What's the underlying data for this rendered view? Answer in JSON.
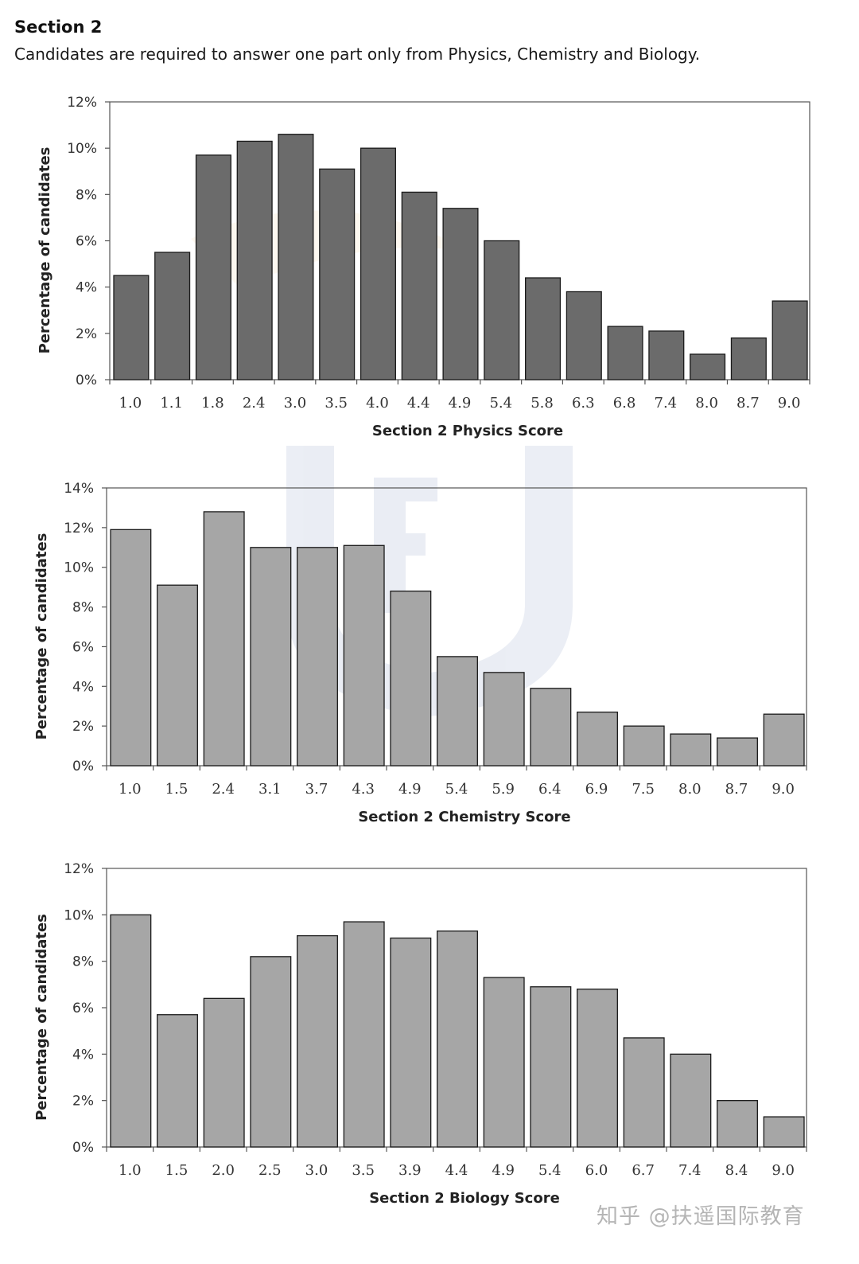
{
  "header": {
    "title": "Section 2",
    "subtitle": "Candidates are required to answer one part only from Physics, Chemistry and Biology."
  },
  "watermark": {
    "text": "知乎 @扶遥国际教育"
  },
  "colors": {
    "physics_bar": "#6b6b6b",
    "bar_light": "#a6a6a6",
    "bar_stroke": "#1a1a1a",
    "axis": "#555555"
  },
  "chart_data": [
    {
      "type": "bar",
      "title": "",
      "xlabel": "Section 2 Physics Score",
      "ylabel": "Percentage of candidates",
      "ylim": [
        0,
        12
      ],
      "yticks": [
        "0%",
        "2%",
        "4%",
        "6%",
        "8%",
        "10%",
        "12%"
      ],
      "categories": [
        "1.0",
        "1.1",
        "1.8",
        "2.4",
        "3.0",
        "3.5",
        "4.0",
        "4.4",
        "4.9",
        "5.4",
        "5.8",
        "6.3",
        "6.8",
        "7.4",
        "8.0",
        "8.7",
        "9.0"
      ],
      "values": [
        4.5,
        5.5,
        9.7,
        10.3,
        10.6,
        9.1,
        10.0,
        8.1,
        7.4,
        6.0,
        4.4,
        3.8,
        2.3,
        2.1,
        1.1,
        1.8,
        3.4
      ]
    },
    {
      "type": "bar",
      "title": "",
      "xlabel": "Section 2 Chemistry Score",
      "ylabel": "Percentage of candidates",
      "ylim": [
        0,
        14
      ],
      "yticks": [
        "0%",
        "2%",
        "4%",
        "6%",
        "8%",
        "10%",
        "12%",
        "14%"
      ],
      "categories": [
        "1.0",
        "1.5",
        "2.4",
        "3.1",
        "3.7",
        "4.3",
        "4.9",
        "5.4",
        "5.9",
        "6.4",
        "6.9",
        "7.5",
        "8.0",
        "8.7",
        "9.0"
      ],
      "values": [
        11.9,
        9.1,
        12.8,
        11.0,
        11.0,
        11.1,
        8.8,
        5.5,
        4.7,
        3.9,
        2.7,
        2.0,
        1.6,
        1.4,
        2.6
      ]
    },
    {
      "type": "bar",
      "title": "",
      "xlabel": "Section 2 Biology Score",
      "ylabel": "Percentage of candidates",
      "ylim": [
        0,
        12
      ],
      "yticks": [
        "0%",
        "2%",
        "4%",
        "6%",
        "8%",
        "10%",
        "12%"
      ],
      "categories": [
        "1.0",
        "1.5",
        "2.0",
        "2.5",
        "3.0",
        "3.5",
        "3.9",
        "4.4",
        "4.9",
        "5.4",
        "6.0",
        "6.7",
        "7.4",
        "8.4",
        "9.0"
      ],
      "values": [
        10.0,
        5.7,
        6.4,
        8.2,
        9.1,
        9.7,
        9.0,
        9.3,
        7.3,
        6.9,
        6.8,
        4.7,
        4.0,
        2.0,
        1.3
      ]
    }
  ]
}
